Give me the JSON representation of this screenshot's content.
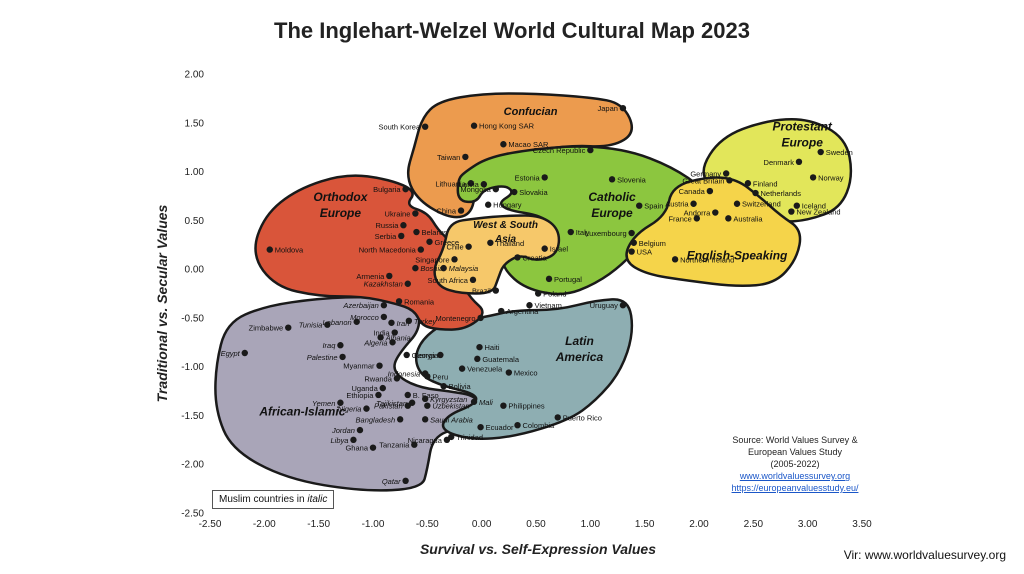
{
  "page": {
    "title": "The Inglehart-Welzel World Cultural Map 2023",
    "credit": "Vir: www.worldvaluesurvey.org",
    "legend_note_prefix": "Muslim countries in ",
    "legend_note_italic": "italic",
    "source_lines": [
      "Source: World Values Survey &",
      "European Values Study",
      "(2005-2022)"
    ],
    "source_links": [
      "www.worldvaluessurvey.org",
      "https://europeanvaluesstudy.eu/"
    ]
  },
  "colors": {
    "confucian": "#ec9b4e",
    "orthodox": "#d9553a",
    "catholic": "#8cc63f",
    "protestant": "#e2e65a",
    "english": "#f5d44a",
    "west_south_asia": "#f6c86a",
    "latin_america": "#8eaeb2",
    "african_islamic": "#a9a5b8",
    "outline": "#1a1a1a",
    "point": "#1a1a1a"
  },
  "chart_data": {
    "type": "scatter",
    "title": "The Inglehart-Welzel World Cultural Map 2023",
    "xlabel": "Survival vs. Self-Expression Values",
    "ylabel": "Traditional vs. Secular Values",
    "xlim": [
      -2.5,
      3.5
    ],
    "ylim": [
      -2.5,
      2.0
    ],
    "xticks": [
      "-2.50",
      "-2.00",
      "-1.50",
      "-1.00",
      "-0.50",
      "0.00",
      "0.50",
      "1.00",
      "1.50",
      "2.00",
      "2.50",
      "3.00",
      "3.50"
    ],
    "yticks": [
      "2.00",
      "1.50",
      "1.00",
      "0.50",
      "0.00",
      "-0.50",
      "-1.00",
      "-1.50",
      "-2.00",
      "-2.50"
    ],
    "zones": [
      {
        "key": "confucian",
        "name": "Confucian"
      },
      {
        "key": "orthodox",
        "name": "Orthodox Europe"
      },
      {
        "key": "catholic",
        "name": "Catholic Europe"
      },
      {
        "key": "protestant",
        "name": "Protestant Europe"
      },
      {
        "key": "english",
        "name": "English-Speaking"
      },
      {
        "key": "west_south_asia",
        "name": "West & South Asia"
      },
      {
        "key": "latin_america",
        "name": "Latin America"
      },
      {
        "key": "african_islamic",
        "name": "African-Islamic"
      }
    ],
    "points": [
      {
        "label": "Japan",
        "x": 1.3,
        "y": 1.65
      },
      {
        "label": "Hong Kong SAR",
        "x": -0.07,
        "y": 1.47
      },
      {
        "label": "South Korea",
        "x": -0.52,
        "y": 1.46
      },
      {
        "label": "Macao SAR",
        "x": 0.2,
        "y": 1.28
      },
      {
        "label": "Taiwan",
        "x": -0.15,
        "y": 1.15
      },
      {
        "label": "China",
        "x": -0.19,
        "y": 0.6
      },
      {
        "label": "Czech Republic",
        "x": 1.0,
        "y": 1.22
      },
      {
        "label": "Slovenia",
        "x": 1.2,
        "y": 0.92
      },
      {
        "label": "Estonia",
        "x": 0.58,
        "y": 0.94
      },
      {
        "label": "Lithuania",
        "x": -0.1,
        "y": 0.88
      },
      {
        "label": "Latvia",
        "x": 0.02,
        "y": 0.87
      },
      {
        "label": "Mongolia",
        "x": 0.13,
        "y": 0.82
      },
      {
        "label": "Slovakia",
        "x": 0.3,
        "y": 0.79
      },
      {
        "label": "Hungary",
        "x": 0.06,
        "y": 0.66
      },
      {
        "label": "Spain",
        "x": 1.45,
        "y": 0.65
      },
      {
        "label": "Italy",
        "x": 0.82,
        "y": 0.38
      },
      {
        "label": "Luxembourg",
        "x": 1.38,
        "y": 0.37
      },
      {
        "label": "Austria",
        "x": 1.95,
        "y": 0.67
      },
      {
        "label": "France",
        "x": 1.98,
        "y": 0.52
      },
      {
        "label": "Belgium",
        "x": 1.4,
        "y": 0.27
      },
      {
        "label": "Portugal",
        "x": 0.62,
        "y": -0.1
      },
      {
        "label": "Poland",
        "x": 0.52,
        "y": -0.25
      },
      {
        "label": "Croatia",
        "x": 0.33,
        "y": 0.12
      },
      {
        "label": "Uruguay",
        "x": 1.3,
        "y": -0.37
      },
      {
        "label": "Argentina",
        "x": 0.18,
        "y": -0.43
      },
      {
        "label": "Germany",
        "x": 2.25,
        "y": 0.98
      },
      {
        "label": "Denmark",
        "x": 2.92,
        "y": 1.1
      },
      {
        "label": "Sweden",
        "x": 3.12,
        "y": 1.2
      },
      {
        "label": "Finland",
        "x": 2.45,
        "y": 0.88
      },
      {
        "label": "Norway",
        "x": 3.05,
        "y": 0.94
      },
      {
        "label": "Netherlands",
        "x": 2.52,
        "y": 0.78
      },
      {
        "label": "Switzerland",
        "x": 2.35,
        "y": 0.67
      },
      {
        "label": "Iceland",
        "x": 2.9,
        "y": 0.65
      },
      {
        "label": "Andorra",
        "x": 2.15,
        "y": 0.58
      },
      {
        "label": "Great Britain",
        "x": 2.28,
        "y": 0.91
      },
      {
        "label": "Canada",
        "x": 2.1,
        "y": 0.8
      },
      {
        "label": "Australia",
        "x": 2.27,
        "y": 0.52
      },
      {
        "label": "New Zealand",
        "x": 2.85,
        "y": 0.59
      },
      {
        "label": "USA",
        "x": 1.38,
        "y": 0.18
      },
      {
        "label": "Northern Ireland",
        "x": 1.78,
        "y": 0.1
      },
      {
        "label": "Bulgaria",
        "x": -0.7,
        "y": 0.82
      },
      {
        "label": "Ukraine",
        "x": -0.61,
        "y": 0.57
      },
      {
        "label": "Russia",
        "x": -0.72,
        "y": 0.45
      },
      {
        "label": "Belarus",
        "x": -0.6,
        "y": 0.38
      },
      {
        "label": "Serbia",
        "x": -0.74,
        "y": 0.34
      },
      {
        "label": "Greece",
        "x": -0.48,
        "y": 0.28
      },
      {
        "label": "North Macedonia",
        "x": -0.56,
        "y": 0.2
      },
      {
        "label": "Moldova",
        "x": -1.95,
        "y": 0.2
      },
      {
        "label": "Bosnia",
        "x": -0.61,
        "y": 0.01
      },
      {
        "label": "Armenia",
        "x": -0.85,
        "y": -0.07
      },
      {
        "label": "Kazakhstan",
        "x": -0.68,
        "y": -0.15
      },
      {
        "label": "Romania",
        "x": -0.76,
        "y": -0.33
      },
      {
        "label": "Montenegro",
        "x": -0.01,
        "y": -0.5
      },
      {
        "label": "Thailand",
        "x": 0.08,
        "y": 0.27
      },
      {
        "label": "Chile",
        "x": -0.12,
        "y": 0.23
      },
      {
        "label": "Israel",
        "x": 0.58,
        "y": 0.21
      },
      {
        "label": "Singapore",
        "x": -0.25,
        "y": 0.1
      },
      {
        "label": "Malaysia",
        "x": -0.35,
        "y": 0.01
      },
      {
        "label": "South Africa",
        "x": -0.08,
        "y": -0.11
      },
      {
        "label": "Brazil",
        "x": 0.13,
        "y": -0.22
      },
      {
        "label": "Vietnam",
        "x": 0.44,
        "y": -0.37
      },
      {
        "label": "Azerbaijan",
        "x": -0.9,
        "y": -0.37
      },
      {
        "label": "Morocco",
        "x": -0.9,
        "y": -0.49
      },
      {
        "label": "Lebanon",
        "x": -1.15,
        "y": -0.54
      },
      {
        "label": "Iran",
        "x": -0.83,
        "y": -0.55
      },
      {
        "label": "Turkey",
        "x": -0.67,
        "y": -0.53
      },
      {
        "label": "Tunisia",
        "x": -1.42,
        "y": -0.57
      },
      {
        "label": "Zimbabwe",
        "x": -1.78,
        "y": -0.6
      },
      {
        "label": "India",
        "x": -0.8,
        "y": -0.65
      },
      {
        "label": "Albania",
        "x": -0.93,
        "y": -0.7
      },
      {
        "label": "Iraq",
        "x": -1.3,
        "y": -0.78
      },
      {
        "label": "Algeria",
        "x": -0.82,
        "y": -0.75
      },
      {
        "label": "Palestine",
        "x": -1.28,
        "y": -0.9
      },
      {
        "label": "Egypt",
        "x": -2.18,
        "y": -0.86
      },
      {
        "label": "Georgia",
        "x": -0.69,
        "y": -0.88
      },
      {
        "label": "Myanmar",
        "x": -0.94,
        "y": -0.99
      },
      {
        "label": "Indonesia",
        "x": -0.52,
        "y": -1.07
      },
      {
        "label": "Rwanda",
        "x": -0.78,
        "y": -1.12
      },
      {
        "label": "Kenya",
        "x": -0.38,
        "y": -0.88
      },
      {
        "label": "Haiti",
        "x": -0.02,
        "y": -0.8
      },
      {
        "label": "Guatemala",
        "x": -0.04,
        "y": -0.92
      },
      {
        "label": "Venezuela",
        "x": -0.18,
        "y": -1.02
      },
      {
        "label": "Mexico",
        "x": 0.25,
        "y": -1.06
      },
      {
        "label": "Peru",
        "x": -0.5,
        "y": -1.1
      },
      {
        "label": "Bolivia",
        "x": -0.35,
        "y": -1.2
      },
      {
        "label": "Uganda",
        "x": -0.91,
        "y": -1.22
      },
      {
        "label": "Ethiopia",
        "x": -0.95,
        "y": -1.29
      },
      {
        "label": "B. Faso",
        "x": -0.68,
        "y": -1.29
      },
      {
        "label": "Tajikistan",
        "x": -0.64,
        "y": -1.37
      },
      {
        "label": "Pakistan",
        "x": -0.68,
        "y": -1.4
      },
      {
        "label": "Kyrgyzstan",
        "x": -0.52,
        "y": -1.33
      },
      {
        "label": "Uzbekistan",
        "x": -0.5,
        "y": -1.4
      },
      {
        "label": "Mali",
        "x": -0.07,
        "y": -1.36
      },
      {
        "label": "Yemen",
        "x": -1.3,
        "y": -1.37
      },
      {
        "label": "Nigeria",
        "x": -1.06,
        "y": -1.43
      },
      {
        "label": "Philippines",
        "x": 0.2,
        "y": -1.4
      },
      {
        "label": "Puerto Rico",
        "x": 0.7,
        "y": -1.52
      },
      {
        "label": "Bangladesh",
        "x": -0.75,
        "y": -1.54
      },
      {
        "label": "Saudi Arabia",
        "x": -0.52,
        "y": -1.54
      },
      {
        "label": "Jordan",
        "x": -1.12,
        "y": -1.65
      },
      {
        "label": "Ecuador",
        "x": -0.01,
        "y": -1.62
      },
      {
        "label": "Colombia",
        "x": 0.33,
        "y": -1.6
      },
      {
        "label": "Libya",
        "x": -1.18,
        "y": -1.75
      },
      {
        "label": "Trinidad",
        "x": -0.28,
        "y": -1.72
      },
      {
        "label": "Nicaragua",
        "x": -0.32,
        "y": -1.75
      },
      {
        "label": "Ghana",
        "x": -1.0,
        "y": -1.83
      },
      {
        "label": "Tanzania",
        "x": -0.62,
        "y": -1.8
      },
      {
        "label": "Qatar",
        "x": -0.7,
        "y": -2.17
      }
    ]
  }
}
